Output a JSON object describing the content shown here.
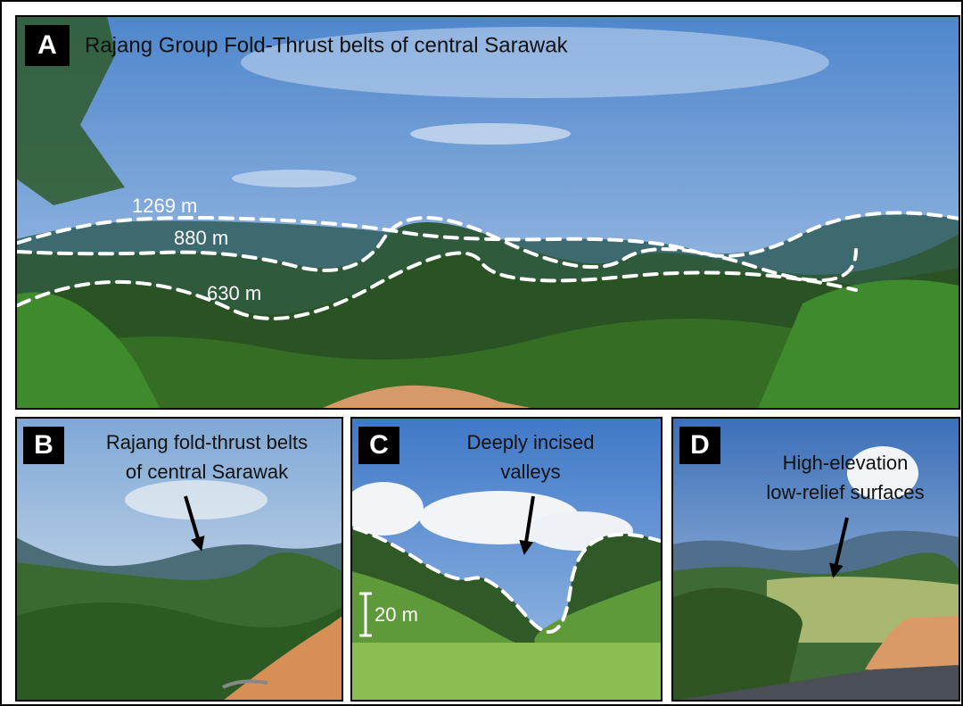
{
  "panels": [
    {
      "label": "A",
      "caption": [
        "Rajang Group Fold-Thrust belts of central Sarawak"
      ],
      "elevations": [
        "1269 m",
        "880 m",
        "630 m"
      ]
    },
    {
      "label": "B",
      "caption": [
        "Rajang fold-thrust belts",
        "of central Sarawak"
      ]
    },
    {
      "label": "C",
      "caption": [
        "Deeply incised",
        "valleys"
      ],
      "scale": "20 m"
    },
    {
      "label": "D",
      "caption": [
        "High-elevation",
        "low-relief surfaces"
      ]
    }
  ]
}
